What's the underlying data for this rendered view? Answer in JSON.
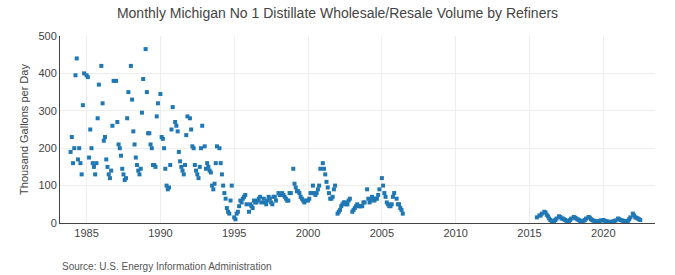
{
  "chart_data": {
    "type": "scatter",
    "title": "Monthly Michigan No 1 Distillate Wholesale/Resale Volume by Refiners",
    "ylabel": "Thousand Gallons per Day",
    "source": "Source: U.S. Energy Information Administration",
    "marker": "square",
    "grid": true,
    "xlim": [
      1983.2,
      2023.5
    ],
    "ylim": [
      0,
      500
    ],
    "xticks": [
      1985,
      1990,
      1995,
      2000,
      2005,
      2010,
      2015,
      2020
    ],
    "yticks": [
      0,
      100,
      200,
      300,
      400,
      500
    ],
    "x": [
      1983.917,
      1984.0,
      1984.083,
      1984.167,
      1984.25,
      1984.333,
      1984.417,
      1984.5,
      1984.583,
      1984.667,
      1984.75,
      1984.833,
      1985.0,
      1985.083,
      1985.167,
      1985.25,
      1985.333,
      1985.417,
      1985.5,
      1985.583,
      1985.667,
      1985.75,
      1985.833,
      1986.0,
      1986.083,
      1986.167,
      1986.25,
      1986.333,
      1986.417,
      1986.5,
      1986.583,
      1986.667,
      1986.75,
      1986.833,
      1987.0,
      1987.083,
      1987.167,
      1987.25,
      1987.333,
      1987.417,
      1987.5,
      1987.583,
      1987.667,
      1987.75,
      1987.833,
      1988.0,
      1988.083,
      1988.167,
      1988.25,
      1988.333,
      1988.417,
      1988.5,
      1988.583,
      1988.667,
      1988.75,
      1988.833,
      1989.0,
      1989.083,
      1989.167,
      1989.25,
      1989.333,
      1989.417,
      1989.5,
      1989.583,
      1989.667,
      1989.75,
      1989.833,
      1990.0,
      1990.083,
      1990.167,
      1990.25,
      1990.333,
      1990.417,
      1990.5,
      1990.583,
      1990.667,
      1990.75,
      1990.833,
      1991.0,
      1991.083,
      1991.167,
      1991.25,
      1991.333,
      1991.417,
      1991.5,
      1991.583,
      1991.667,
      1991.75,
      1991.833,
      1992.0,
      1992.083,
      1992.167,
      1992.25,
      1992.333,
      1992.417,
      1992.5,
      1992.583,
      1992.667,
      1992.75,
      1992.833,
      1993.0,
      1993.083,
      1993.167,
      1993.25,
      1993.333,
      1993.417,
      1993.5,
      1993.583,
      1993.667,
      1993.75,
      1993.833,
      1994.0,
      1994.083,
      1994.167,
      1994.25,
      1994.333,
      1994.417,
      1994.5,
      1994.583,
      1994.667,
      1994.75,
      1994.833,
      1995.0,
      1995.083,
      1995.167,
      1995.25,
      1995.333,
      1995.417,
      1995.5,
      1995.583,
      1995.667,
      1995.75,
      1995.833,
      1996.0,
      1996.083,
      1996.167,
      1996.25,
      1996.333,
      1996.417,
      1996.5,
      1996.583,
      1996.667,
      1996.75,
      1996.833,
      1997.0,
      1997.083,
      1997.167,
      1997.25,
      1997.333,
      1997.417,
      1997.5,
      1997.583,
      1997.667,
      1997.75,
      1997.833,
      1998.0,
      1998.083,
      1998.167,
      1998.25,
      1998.333,
      1998.417,
      1998.5,
      1998.583,
      1998.667,
      1998.75,
      1998.833,
      1999.0,
      1999.083,
      1999.167,
      1999.25,
      1999.333,
      1999.417,
      1999.5,
      1999.583,
      1999.667,
      1999.75,
      1999.833,
      2000.0,
      2000.083,
      2000.167,
      2000.25,
      2000.333,
      2000.417,
      2000.5,
      2000.583,
      2000.667,
      2000.75,
      2000.833,
      2001.0,
      2001.083,
      2001.167,
      2001.25,
      2001.333,
      2001.417,
      2001.5,
      2001.583,
      2001.667,
      2001.75,
      2001.833,
      2002.0,
      2002.083,
      2002.167,
      2002.25,
      2002.333,
      2002.417,
      2002.5,
      2002.583,
      2002.667,
      2002.75,
      2002.833,
      2003.0,
      2003.083,
      2003.167,
      2003.25,
      2003.333,
      2003.417,
      2003.5,
      2003.583,
      2003.667,
      2003.75,
      2003.833,
      2004.0,
      2004.083,
      2004.167,
      2004.25,
      2004.333,
      2004.417,
      2004.5,
      2004.583,
      2004.667,
      2004.75,
      2004.833,
      2005.0,
      2005.083,
      2005.167,
      2005.25,
      2005.333,
      2005.417,
      2005.5,
      2005.583,
      2005.667,
      2005.75,
      2005.833,
      2006.0,
      2006.083,
      2006.167,
      2006.25,
      2006.333,
      2006.417,
      2015.5,
      2015.667,
      2015.75,
      2015.833,
      2016.0,
      2016.083,
      2016.167,
      2016.25,
      2016.333,
      2016.417,
      2016.5,
      2016.583,
      2016.667,
      2016.75,
      2016.833,
      2017.0,
      2017.083,
      2017.167,
      2017.25,
      2017.333,
      2017.417,
      2017.5,
      2017.583,
      2017.667,
      2017.75,
      2017.833,
      2018.0,
      2018.083,
      2018.167,
      2018.25,
      2018.333,
      2018.417,
      2018.5,
      2018.583,
      2018.667,
      2018.75,
      2018.833,
      2019.0,
      2019.083,
      2019.167,
      2019.25,
      2019.333,
      2019.417,
      2019.5,
      2019.583,
      2019.667,
      2019.75,
      2019.833,
      2020.0,
      2020.083,
      2020.167,
      2020.25,
      2020.333,
      2020.417,
      2020.5,
      2020.583,
      2020.667,
      2020.75,
      2020.833,
      2021.0,
      2021.083,
      2021.167,
      2021.25,
      2021.333,
      2021.417,
      2021.5,
      2021.583,
      2021.667,
      2021.75,
      2021.833,
      2022.0,
      2022.083,
      2022.167,
      2022.25,
      2022.333,
      2022.417,
      2022.5
    ],
    "values": [
      190,
      230,
      160,
      200,
      395,
      440,
      170,
      200,
      160,
      130,
      315,
      400,
      395,
      390,
      175,
      250,
      200,
      160,
      150,
      130,
      160,
      280,
      370,
      420,
      320,
      220,
      230,
      170,
      150,
      130,
      120,
      140,
      260,
      380,
      380,
      270,
      210,
      200,
      180,
      145,
      130,
      115,
      120,
      280,
      350,
      420,
      330,
      245,
      210,
      175,
      155,
      140,
      130,
      145,
      295,
      385,
      465,
      350,
      240,
      240,
      210,
      200,
      155,
      155,
      150,
      285,
      320,
      345,
      230,
      225,
      200,
      145,
      100,
      90,
      95,
      155,
      250,
      310,
      270,
      260,
      245,
      190,
      165,
      150,
      140,
      130,
      155,
      235,
      285,
      280,
      250,
      205,
      200,
      155,
      140,
      130,
      120,
      150,
      200,
      260,
      205,
      145,
      160,
      150,
      140,
      135,
      100,
      90,
      105,
      160,
      205,
      200,
      160,
      130,
      100,
      80,
      65,
      40,
      30,
      25,
      60,
      100,
      15,
      10,
      25,
      30,
      45,
      60,
      55,
      65,
      70,
      75,
      50,
      30,
      50,
      45,
      40,
      60,
      55,
      55,
      60,
      65,
      70,
      55,
      65,
      55,
      50,
      60,
      70,
      65,
      55,
      50,
      70,
      70,
      60,
      80,
      75,
      75,
      80,
      75,
      70,
      65,
      60,
      60,
      80,
      80,
      145,
      105,
      95,
      85,
      85,
      80,
      70,
      65,
      60,
      55,
      60,
      60,
      65,
      80,
      80,
      100,
      80,
      75,
      80,
      90,
      100,
      145,
      160,
      145,
      130,
      110,
      95,
      80,
      65,
      65,
      70,
      90,
      100,
      25,
      30,
      35,
      45,
      50,
      55,
      55,
      50,
      50,
      60,
      65,
      30,
      35,
      40,
      45,
      50,
      45,
      45,
      45,
      45,
      55,
      55,
      90,
      65,
      55,
      60,
      70,
      65,
      60,
      65,
      65,
      75,
      90,
      120,
      100,
      80,
      70,
      55,
      50,
      45,
      45,
      50,
      70,
      80,
      65,
      50,
      50,
      40,
      35,
      25,
      15,
      20,
      20,
      25,
      30,
      28,
      22,
      18,
      12,
      8,
      5,
      4,
      4,
      8,
      12,
      18,
      16,
      12,
      12,
      10,
      8,
      6,
      5,
      5,
      8,
      12,
      16,
      14,
      12,
      10,
      8,
      6,
      5,
      5,
      6,
      8,
      12,
      16,
      14,
      10,
      8,
      6,
      5,
      4,
      3,
      4,
      5,
      7,
      8,
      6,
      5,
      4,
      3,
      3,
      3,
      3,
      4,
      5,
      7,
      12,
      10,
      8,
      7,
      6,
      5,
      5,
      5,
      6,
      10,
      15,
      25,
      20,
      15,
      14,
      12,
      10,
      8
    ]
  }
}
